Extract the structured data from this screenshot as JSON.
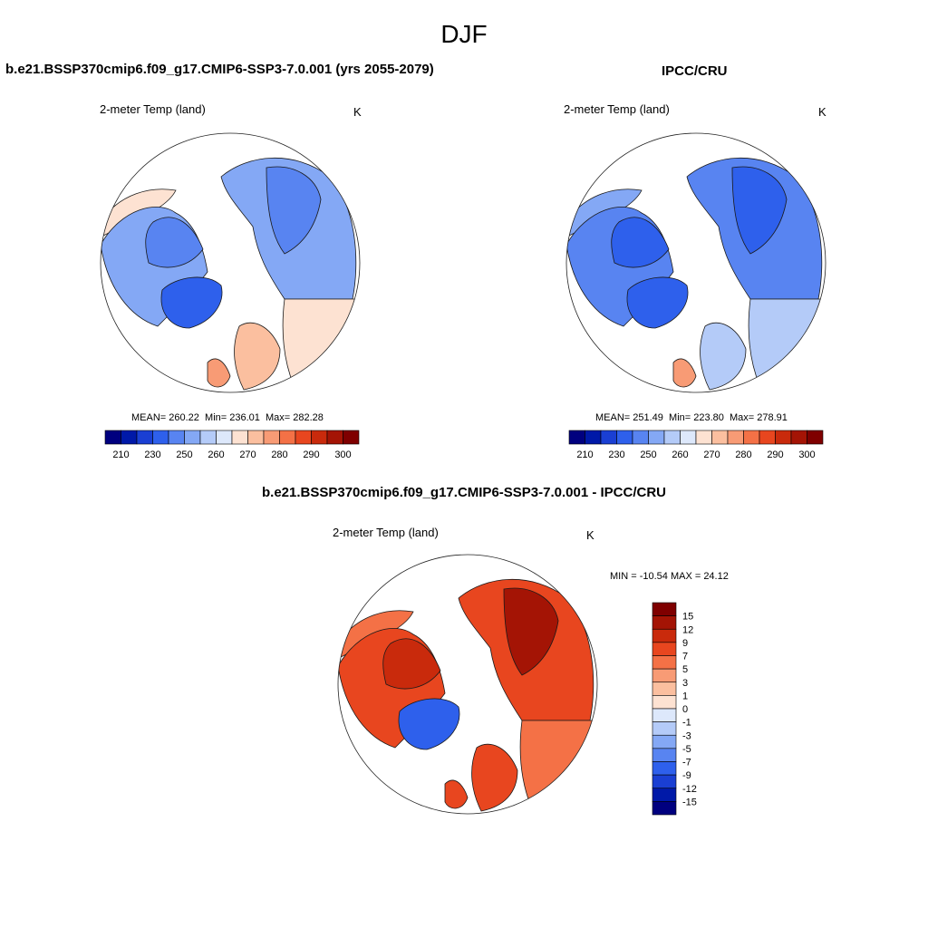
{
  "page": {
    "season": "DJF",
    "panel_top_left_title": "b.e21.BSSP370cmip6.f09_g17.CMIP6-SSP3-7.0.001 (yrs 2055-2079)",
    "panel_top_right_title": "IPCC/CRU",
    "panel_bottom_title": "b.e21.BSSP370cmip6.f09_g17.CMIP6-SSP3-7.0.001 - IPCC/CRU"
  },
  "panels": [
    {
      "id": "model",
      "variable": "2-meter Temp (land)",
      "units": "K",
      "stats": {
        "mean": "MEAN= 260.22",
        "min": "Min= 236.01",
        "max": "Max= 282.28"
      }
    },
    {
      "id": "obs",
      "variable": "2-meter Temp (land)",
      "units": "K",
      "stats": {
        "mean": "MEAN= 251.49",
        "min": "Min= 223.80",
        "max": "Max= 278.91"
      }
    },
    {
      "id": "diff",
      "variable": "2-meter Temp (land)",
      "units": "K",
      "minmax": "MIN = -10.54  MAX =  24.12"
    }
  ],
  "abs_colorbar": {
    "colors": [
      "#00007f",
      "#0019a8",
      "#1a3fd3",
      "#2e60ec",
      "#5884f1",
      "#84a8f5",
      "#b4cbf8",
      "#dde8fb",
      "#fde2d2",
      "#fbbf9f",
      "#f89b75",
      "#f47146",
      "#e8461f",
      "#c92a0c",
      "#a41405",
      "#7f0000"
    ],
    "tick_labels": [
      "210",
      "230",
      "250",
      "260",
      "270",
      "280",
      "290",
      "300"
    ]
  },
  "diff_colorbar": {
    "colors": [
      "#00007f",
      "#0019a8",
      "#1a3fd3",
      "#2e60ec",
      "#5884f1",
      "#84a8f5",
      "#b4cbf8",
      "#dde8fb",
      "#fde2d2",
      "#fbbf9f",
      "#f89b75",
      "#f47146",
      "#e8461f",
      "#c92a0c",
      "#a41405",
      "#7f0000"
    ],
    "tick_labels": [
      "15",
      "12",
      "9",
      "7",
      "5",
      "3",
      "1",
      "0",
      "-1",
      "-3",
      "-5",
      "-7",
      "-9",
      "-12",
      "-15"
    ]
  },
  "map_colors": {
    "model": {
      "eurasia": "#84a8f5",
      "siberia_east": "#5884f1",
      "europe": "#fbbf9f",
      "north_america": "#84a8f5",
      "canada_north": "#5884f1",
      "greenland": "#2e60ec",
      "alaska": "#fde2d2",
      "south_band": "#fde2d2",
      "scandinavia": "#f89b75"
    },
    "obs": {
      "eurasia": "#5884f1",
      "siberia_east": "#2e60ec",
      "europe": "#b4cbf8",
      "north_america": "#5884f1",
      "canada_north": "#2e60ec",
      "greenland": "#2e60ec",
      "alaska": "#84a8f5",
      "south_band": "#b4cbf8",
      "scandinavia": "#f89b75"
    },
    "diff": {
      "eurasia": "#e8461f",
      "siberia_east": "#a41405",
      "europe": "#e8461f",
      "north_america": "#e8461f",
      "canada_north": "#c92a0c",
      "greenland": "#2e60ec",
      "alaska": "#f47146",
      "south_band": "#f47146",
      "scandinavia": "#e8461f"
    }
  }
}
